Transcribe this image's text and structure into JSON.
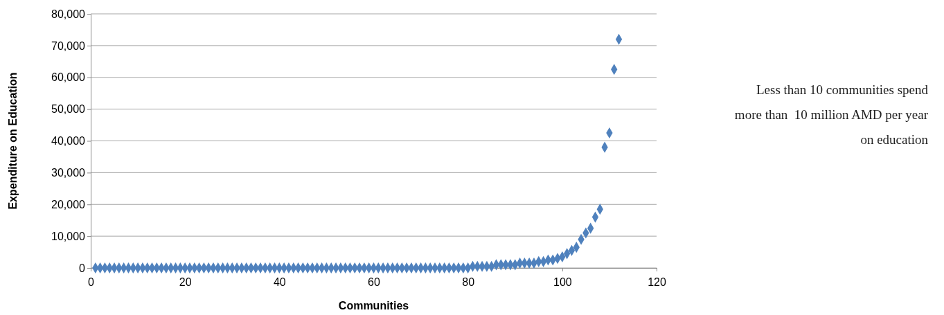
{
  "chart_data": {
    "type": "scatter",
    "xlabel": "Communities",
    "ylabel": "Expenditure on Education",
    "marker": "diamond",
    "grid": "y",
    "x": [
      1,
      2,
      3,
      4,
      5,
      6,
      7,
      8,
      9,
      10,
      11,
      12,
      13,
      14,
      15,
      16,
      17,
      18,
      19,
      20,
      21,
      22,
      23,
      24,
      25,
      26,
      27,
      28,
      29,
      30,
      31,
      32,
      33,
      34,
      35,
      36,
      37,
      38,
      39,
      40,
      41,
      42,
      43,
      44,
      45,
      46,
      47,
      48,
      49,
      50,
      51,
      52,
      53,
      54,
      55,
      56,
      57,
      58,
      59,
      60,
      61,
      62,
      63,
      64,
      65,
      66,
      67,
      68,
      69,
      70,
      71,
      72,
      73,
      74,
      75,
      76,
      77,
      78,
      79,
      80,
      81,
      82,
      83,
      84,
      85,
      86,
      87,
      88,
      89,
      90,
      91,
      92,
      93,
      94,
      95,
      96,
      97,
      98,
      99,
      100,
      101,
      102,
      103,
      104,
      105,
      106,
      107,
      108,
      109,
      110,
      111,
      112
    ],
    "series": [
      {
        "color": "#4f81bd",
        "values": [
          0,
          0,
          0,
          0,
          0,
          0,
          0,
          0,
          0,
          0,
          0,
          0,
          0,
          0,
          0,
          0,
          0,
          0,
          0,
          0,
          0,
          0,
          0,
          0,
          0,
          0,
          0,
          0,
          0,
          0,
          0,
          0,
          0,
          0,
          0,
          0,
          0,
          0,
          0,
          0,
          0,
          0,
          0,
          0,
          0,
          0,
          0,
          0,
          0,
          0,
          0,
          0,
          0,
          0,
          0,
          0,
          0,
          0,
          0,
          0,
          0,
          0,
          0,
          0,
          0,
          0,
          0,
          0,
          0,
          0,
          0,
          0,
          0,
          0,
          0,
          0,
          0,
          0,
          0,
          0,
          500,
          500,
          500,
          500,
          500,
          1000,
          1000,
          1000,
          1000,
          1000,
          1500,
          1500,
          1500,
          1500,
          2000,
          2000,
          2500,
          2500,
          3000,
          3500,
          4500,
          5500,
          6500,
          9000,
          11000,
          12500,
          16000,
          18500,
          38000,
          42500,
          62500,
          72000
        ]
      }
    ],
    "xlim": [
      0,
      120
    ],
    "xticks": [
      0,
      20,
      40,
      60,
      80,
      100,
      120
    ],
    "ylim": [
      0,
      80000
    ],
    "yticks": [
      {
        "value": 0,
        "label": "0"
      },
      {
        "value": 10000,
        "label": "10,000"
      },
      {
        "value": 20000,
        "label": "20,000"
      },
      {
        "value": 30000,
        "label": "30,000"
      },
      {
        "value": 40000,
        "label": "40,000"
      },
      {
        "value": 50000,
        "label": "50,000"
      },
      {
        "value": 60000,
        "label": "60,000"
      },
      {
        "value": 70000,
        "label": "70,000"
      },
      {
        "value": 80000,
        "label": "80,000"
      }
    ],
    "annotations": [
      "Less than 10 communities spend more than  10 million AMD per year on education"
    ]
  }
}
